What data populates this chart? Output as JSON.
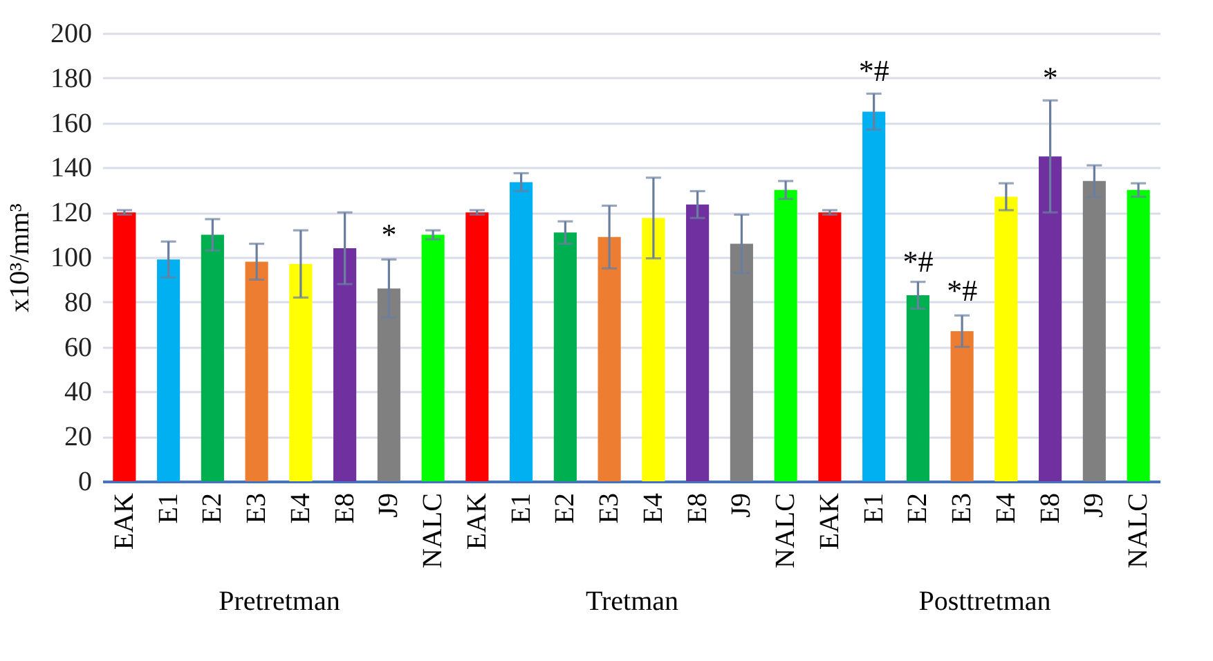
{
  "chart_data": [
    {
      "type": "bar",
      "xlabel": "Pretretman",
      "ylabel": "x10³/mm³",
      "categories": [
        "EAK",
        "E1",
        "E2",
        "E3",
        "E4",
        "E8",
        "J9",
        "NALC"
      ],
      "values": [
        120,
        99,
        110,
        98,
        97,
        104,
        86,
        110
      ],
      "errors": [
        1,
        8,
        7,
        8,
        15,
        16,
        13,
        2
      ],
      "colors": [
        "#ff0000",
        "#00b0f0",
        "#00b050",
        "#ed7d31",
        "#ffff00",
        "#7030a0",
        "#808080",
        "#00ff00"
      ],
      "ylim": [
        0,
        200
      ],
      "yticks": [
        0,
        20,
        40,
        60,
        80,
        100,
        120,
        140,
        160,
        180,
        200
      ],
      "grid": "y",
      "annotations": [
        {
          "text": "*",
          "x": "J9",
          "y": 100
        }
      ]
    },
    {
      "type": "bar",
      "xlabel": "Tretman",
      "categories": [
        "EAK",
        "E1",
        "E2",
        "E3",
        "E4",
        "E8",
        "J9",
        "NALC"
      ],
      "values": [
        120,
        133.5,
        111,
        109,
        117.5,
        123.5,
        106,
        130
      ],
      "errors": [
        1,
        4,
        5,
        14,
        18,
        6,
        13,
        4
      ],
      "colors": [
        "#ff0000",
        "#00b0f0",
        "#00b050",
        "#ed7d31",
        "#ffff00",
        "#7030a0",
        "#808080",
        "#00ff00"
      ],
      "ylim": [
        0,
        200
      ],
      "yticks": [
        0,
        20,
        40,
        60,
        80,
        100,
        120,
        140,
        160,
        180,
        200
      ],
      "grid": "y",
      "tick_labels": "x"
    },
    {
      "type": "bar",
      "xlabel": "Posttretman",
      "categories": [
        "EAK",
        "E1",
        "E2",
        "E3",
        "E4",
        "E8",
        "J9",
        "NALC"
      ],
      "values": [
        120,
        165,
        83,
        67,
        127,
        145,
        134,
        130
      ],
      "errors": [
        1,
        8,
        6,
        7,
        6,
        25,
        7,
        3
      ],
      "colors": [
        "#ff0000",
        "#00b0f0",
        "#00b050",
        "#ed7d31",
        "#ffff00",
        "#7030a0",
        "#808080",
        "#00ff00"
      ],
      "ylim": [
        0,
        200
      ],
      "yticks": [
        0,
        20,
        40,
        60,
        80,
        100,
        120,
        140,
        160,
        180,
        200
      ],
      "grid": "y",
      "tick_labels": "x",
      "annotations": [
        {
          "text": "*#",
          "x": "E1",
          "y": 173
        },
        {
          "text": "*#",
          "x": "E2",
          "y": 88
        },
        {
          "text": "*#",
          "x": "E3",
          "y": 75
        },
        {
          "text": "*",
          "x": "E8",
          "y": 170
        }
      ]
    }
  ]
}
